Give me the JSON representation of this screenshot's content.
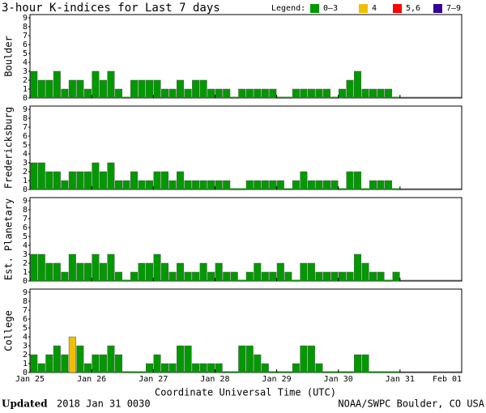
{
  "chart_data": {
    "type": "bar",
    "title": "3-hour K-indices for Last 7 days",
    "legend_title": "Legend:",
    "legend": [
      {
        "label": "0–3",
        "color": "#009900",
        "min": 0
      },
      {
        "label": "4",
        "color": "#f0c000",
        "min": 4
      },
      {
        "label": "5,6",
        "color": "#ff0000",
        "min": 5
      },
      {
        "label": "7–9",
        "color": "#330099",
        "min": 7
      }
    ],
    "x_labels": [
      "Jan 25",
      "Jan 26",
      "Jan 27",
      "Jan 28",
      "Jan 29",
      "Jan 30",
      "Jan 31",
      "Feb 01"
    ],
    "x_label": "Coordinate Universal Time (UTC)",
    "ylim": [
      0,
      9
    ],
    "yticks": [
      0,
      1,
      2,
      3,
      4,
      5,
      6,
      7,
      8,
      9
    ],
    "panels": [
      {
        "name": "Boulder",
        "values": [
          3,
          2,
          2,
          3,
          1,
          2,
          2,
          1,
          3,
          2,
          3,
          1,
          0,
          2,
          2,
          2,
          2,
          1,
          1,
          2,
          1,
          2,
          2,
          1,
          1,
          1,
          0,
          1,
          1,
          1,
          1,
          1,
          0,
          0,
          1,
          1,
          1,
          1,
          1,
          0,
          1,
          2,
          3,
          1,
          1,
          1,
          1,
          0
        ]
      },
      {
        "name": "Fredericksburg",
        "values": [
          3,
          3,
          2,
          2,
          1,
          2,
          2,
          2,
          3,
          2,
          3,
          1,
          1,
          2,
          1,
          1,
          2,
          2,
          1,
          2,
          1,
          1,
          1,
          1,
          1,
          1,
          0,
          0,
          1,
          1,
          1,
          1,
          1,
          0,
          1,
          2,
          1,
          1,
          1,
          1,
          0,
          2,
          2,
          0,
          1,
          1,
          1,
          0
        ]
      },
      {
        "name": "Est. Planetary",
        "values": [
          3,
          3,
          2,
          2,
          1,
          3,
          2,
          2,
          3,
          2,
          3,
          1,
          0,
          1,
          2,
          2,
          3,
          2,
          1,
          2,
          1,
          1,
          2,
          1,
          2,
          1,
          1,
          0,
          1,
          2,
          1,
          1,
          2,
          1,
          0,
          2,
          2,
          1,
          1,
          1,
          1,
          1,
          3,
          2,
          1,
          1,
          0,
          1
        ]
      },
      {
        "name": "College",
        "values": [
          2,
          1,
          2,
          3,
          2,
          4,
          3,
          1,
          2,
          2,
          3,
          2,
          0,
          0,
          0,
          1,
          2,
          1,
          1,
          3,
          3,
          1,
          1,
          1,
          1,
          0,
          0,
          3,
          3,
          2,
          1,
          0,
          0,
          0,
          1,
          3,
          3,
          1,
          0,
          0,
          0,
          0,
          2,
          2,
          0,
          0,
          0,
          0
        ]
      }
    ],
    "footer": {
      "updated": "Updated",
      "time": "2018 Jan 31 0030",
      "source": "NOAA/SWPC Boulder, CO USA"
    }
  }
}
